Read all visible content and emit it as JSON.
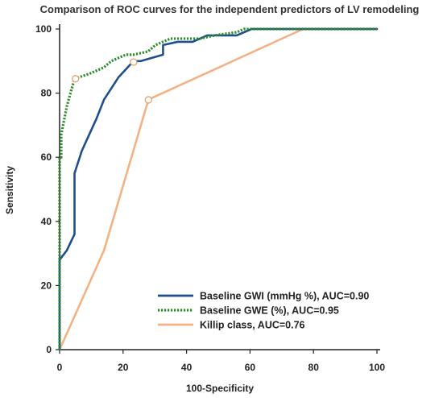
{
  "chart_data": {
    "type": "line",
    "title": "Comparison of ROC curves for the independent predictors of LV remodeling",
    "xlabel": "100-Specificity",
    "ylabel": "Sensitivity",
    "xlim": [
      0,
      100
    ],
    "ylim": [
      0,
      100
    ],
    "xticks": [
      "0",
      "20",
      "40",
      "60",
      "80",
      "100"
    ],
    "yticks": [
      "0",
      "20",
      "40",
      "60",
      "80",
      "100"
    ],
    "grid": false,
    "legend_position": "bottom-right",
    "series": [
      {
        "name": "Baseline GWI (mmHg %), AUC=0.90",
        "color": "#1f4e8c",
        "style": "solid",
        "x": [
          0,
          0,
          0,
          0,
          2.3,
          4.7,
          4.7,
          7.0,
          9.3,
          11.6,
          14.0,
          18.6,
          23.3,
          25.6,
          32.6,
          32.6,
          37.2,
          41.9,
          46.5,
          55.8,
          60.5,
          76.7,
          100
        ],
        "y": [
          0,
          21,
          24,
          28,
          31,
          36,
          55,
          62,
          67,
          72,
          78,
          85,
          90,
          90,
          92,
          95,
          96,
          96,
          98,
          98,
          100,
          100,
          100
        ],
        "marker": {
          "x": 23.3,
          "y": 89.7
        }
      },
      {
        "name": "Baseline GWE (%), AUC=0.95",
        "color": "#2e8b2e",
        "style": "dotted",
        "x": [
          0,
          0,
          0,
          0.5,
          0.5,
          1.5,
          2.3,
          2.3,
          4.7,
          9.3,
          13.9,
          16.3,
          20.9,
          23.3,
          27.9,
          30.2,
          34.9,
          44.2,
          48.8,
          55.8,
          58.1,
          62.8,
          76.7,
          100
        ],
        "y": [
          0,
          28,
          60,
          60,
          67,
          72,
          76,
          76,
          84.5,
          86,
          88,
          90,
          92,
          92,
          93,
          95,
          97,
          97,
          98,
          99,
          100,
          100,
          100,
          100
        ],
        "marker": {
          "x": 5.0,
          "y": 84.5
        }
      },
      {
        "name": "Killip class, AUC=0.76",
        "color": "#f4b183",
        "style": "solid",
        "x": [
          0,
          14,
          28,
          76.7,
          100
        ],
        "y": [
          0,
          31,
          78,
          100,
          100
        ],
        "marker": {
          "x": 28,
          "y": 77.9
        }
      }
    ]
  }
}
